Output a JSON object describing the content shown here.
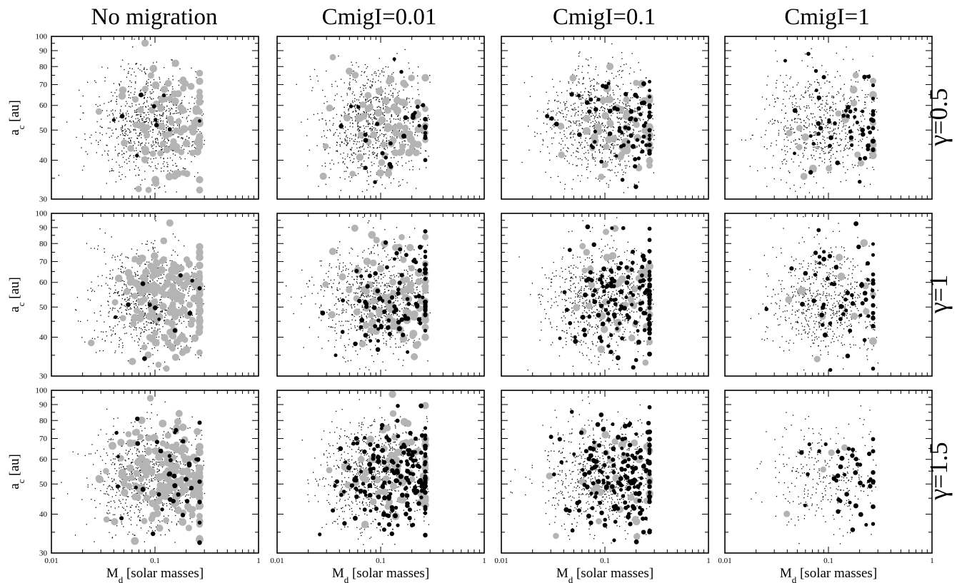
{
  "figure": {
    "column_titles": [
      "No migration",
      "CmigI=0.01",
      "CmigI=0.1",
      "CmigI=1"
    ],
    "row_titles": [
      "γ=0.5",
      "γ=1",
      "γ=1.5"
    ],
    "xlabel_main": "M",
    "xlabel_sub": "d",
    "xlabel_tail": " [solar masses]",
    "ylabel_main": "a",
    "ylabel_sub": "c",
    "ylabel_tail": " [au]",
    "x_ticklabels": [
      "0.01",
      "0.1",
      "1"
    ],
    "y_ticklabels": [
      "30",
      "40",
      "50",
      "60",
      "70",
      "80",
      "90",
      "100"
    ]
  },
  "colors": {
    "dots": "#000000",
    "grey": "#b4b4b4",
    "black": "#000000"
  },
  "chart_data": {
    "type": "scatter",
    "note": "3x4 grid of log-log scatter panels; counts are approximate",
    "xlim": [
      0.01,
      1
    ],
    "ylim": [
      30,
      100
    ],
    "xscale": "log",
    "yscale": "log",
    "grid": false,
    "panels": [
      {
        "row": "γ=0.5",
        "col": "No migration",
        "n_dots": 900,
        "n_grey": 95,
        "n_black": 10
      },
      {
        "row": "γ=0.5",
        "col": "CmigI=0.01",
        "n_dots": 900,
        "n_grey": 75,
        "n_black": 32
      },
      {
        "row": "γ=0.5",
        "col": "CmigI=0.1",
        "n_dots": 850,
        "n_grey": 55,
        "n_black": 75
      },
      {
        "row": "γ=0.5",
        "col": "CmigI=1",
        "n_dots": 650,
        "n_grey": 22,
        "n_black": 55
      },
      {
        "row": "γ=1",
        "col": "No migration",
        "n_dots": 850,
        "n_grey": 175,
        "n_black": 12
      },
      {
        "row": "γ=1",
        "col": "CmigI=0.01",
        "n_dots": 850,
        "n_grey": 95,
        "n_black": 95
      },
      {
        "row": "γ=1",
        "col": "CmigI=0.1",
        "n_dots": 750,
        "n_grey": 40,
        "n_black": 135
      },
      {
        "row": "γ=1",
        "col": "CmigI=1",
        "n_dots": 650,
        "n_grey": 12,
        "n_black": 60
      },
      {
        "row": "γ=1.5",
        "col": "No migration",
        "n_dots": 850,
        "n_grey": 175,
        "n_black": 38
      },
      {
        "row": "γ=1.5",
        "col": "CmigI=0.01",
        "n_dots": 800,
        "n_grey": 70,
        "n_black": 175
      },
      {
        "row": "γ=1.5",
        "col": "CmigI=0.1",
        "n_dots": 700,
        "n_grey": 35,
        "n_black": 175
      },
      {
        "row": "γ=1.5",
        "col": "CmigI=1",
        "n_dots": 300,
        "n_grey": 4,
        "n_black": 42
      }
    ],
    "distribution": {
      "log10_md_mean": -1.05,
      "log10_md_sd": 0.27,
      "log10_ac_mean": 1.72,
      "log10_ac_sd": 0.09
    }
  }
}
